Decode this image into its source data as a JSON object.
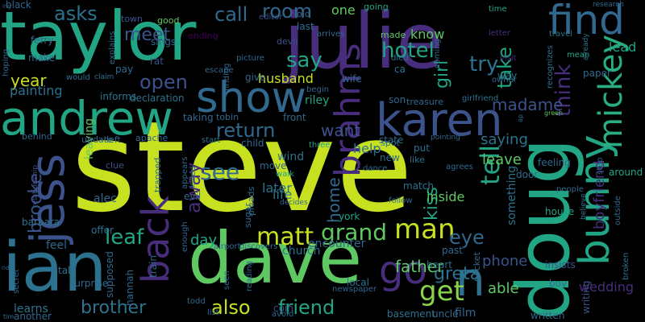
{
  "words": {
    "steve": "steve",
    "taylor": "taylor",
    "julie": "julie",
    "doug": "doug",
    "dave": "dave",
    "ian": "ian",
    "andrew": "andrew",
    "karen": "karen",
    "show": "show",
    "jess": "jess",
    "back": "back",
    "bunny": "bunny",
    "find": "find",
    "brahms": "brahms",
    "mickey": "mickey",
    "matt": "matt",
    "man": "man",
    "go": "go",
    "n": "n",
    "get": "get",
    "grand": "grand",
    "greta": "greta",
    "room": "room",
    "call": "call",
    "meet": "meet",
    "asks": "asks",
    "hotel": "hotel",
    "try": "try",
    "take": "take",
    "think": "think",
    "say": "say",
    "open": "open",
    "year": "year",
    "return": "return",
    "want": "want",
    "madame": "madame",
    "tell": "tell",
    "see": "see",
    "away": "away",
    "brooke": "brooke",
    "leaf": "leaf",
    "kiss": "kiss",
    "home": "home",
    "eye": "eye",
    "friend": "friend",
    "brother": "brother",
    "also": "also",
    "father": "father",
    "husband": "husband",
    "girl": "girl",
    "know": "know",
    "one": "one",
    "painting": "painting",
    "lead": "lead",
    "boyfriend": "boyfriend",
    "saying": "saying",
    "leave": "leave",
    "help": "help",
    "life": "life",
    "later": "later",
    "inside": "inside",
    "day": "day",
    "phone": "phone",
    "able": "able",
    "wedding": "wedding",
    "alec": "alec",
    "leaving": "leaving",
    "something": "something",
    "black": "black",
    "ferry": "ferry",
    "make": "make",
    "town": "town",
    "sings": "sings",
    "explains": "explains",
    "rat": "rat",
    "pay": "pay",
    "good": "good",
    "ending": "ending",
    "editor": "editor",
    "old": "old",
    "last": "last",
    "devil": "devil",
    "arrives": "arrives",
    "going": "going",
    "time": "time",
    "research": "research",
    "letter": "letter",
    "travel": "travel",
    "mean": "mean",
    "already": "already",
    "paper": "paper",
    "way": "way",
    "ca": "ca",
    "died": "died",
    "made": "made",
    "coming": "coming",
    "visit": "visit",
    "owner": "owner",
    "recognizes": "recognizes",
    "son": "son",
    "treasure": "treasure",
    "girlfriend": "girlfriend",
    "wife": "wife",
    "riley": "riley",
    "begin": "begin",
    "give": "give",
    "picture": "picture",
    "finding": "finding",
    "escape": "escape",
    "declaration": "declaration",
    "informs": "informs",
    "claim": "claim",
    "would": "would",
    "hoping": "hoping",
    "taking": "taking",
    "tobin": "tobin",
    "front": "front",
    "child": "child",
    "start": "start",
    "three": "three",
    "state": "state",
    "put": "put",
    "pointing": "pointing",
    "like": "like",
    "new": "new",
    "dance": "dance",
    "agrees": "agrees",
    "step": "step",
    "feeling": "feeling",
    "door": "door",
    "around": "around",
    "people": "people",
    "behind": "behind",
    "update": "update",
    "left": "left",
    "apache": "apache",
    "clue": "clue",
    "trapped": "trapped",
    "appears": "appears",
    "killed": "killed",
    "evil": "evil",
    "move": "move",
    "walk": "walk",
    "wind": "wind",
    "spot": "spot",
    "match": "match",
    "follow": "follow",
    "relationship": "relationship",
    "barbara": "barbara",
    "sugar": "sugar",
    "pleads": "pleads",
    "decides": "decides",
    "york": "york",
    "offer": "offer",
    "enough": "enough",
    "airport": "airport",
    "encounter": "encounter",
    "feel": "feel",
    "talk": "talk",
    "secret": "secret",
    "surprise": "surprise",
    "supposed": "supposed",
    "hannah": "hannah",
    "train": "train",
    "discovers": "discovers",
    "church": "church",
    "past": "past",
    "pocket": "pocket",
    "house": "house",
    "believe": "believe",
    "outside": "outside",
    "heart": "heart",
    "insists": "insists",
    "writing": "writing",
    "broken": "broken",
    "learns": "learns",
    "another": "another",
    "todd": "todd",
    "list": "list",
    "coin": "coin",
    "avoid": "avoid",
    "seen": "seen",
    "reading": "reading",
    "newspaper": "newspaper",
    "local": "local",
    "basement": "basement",
    "uncle": "uncle",
    "film": "film",
    "boy": "boy",
    "written": "written",
    "tiny1": "ing",
    "tiny2": "rid",
    "tiny3": "ap",
    "tiny4": "tim",
    "green": "green"
  }
}
